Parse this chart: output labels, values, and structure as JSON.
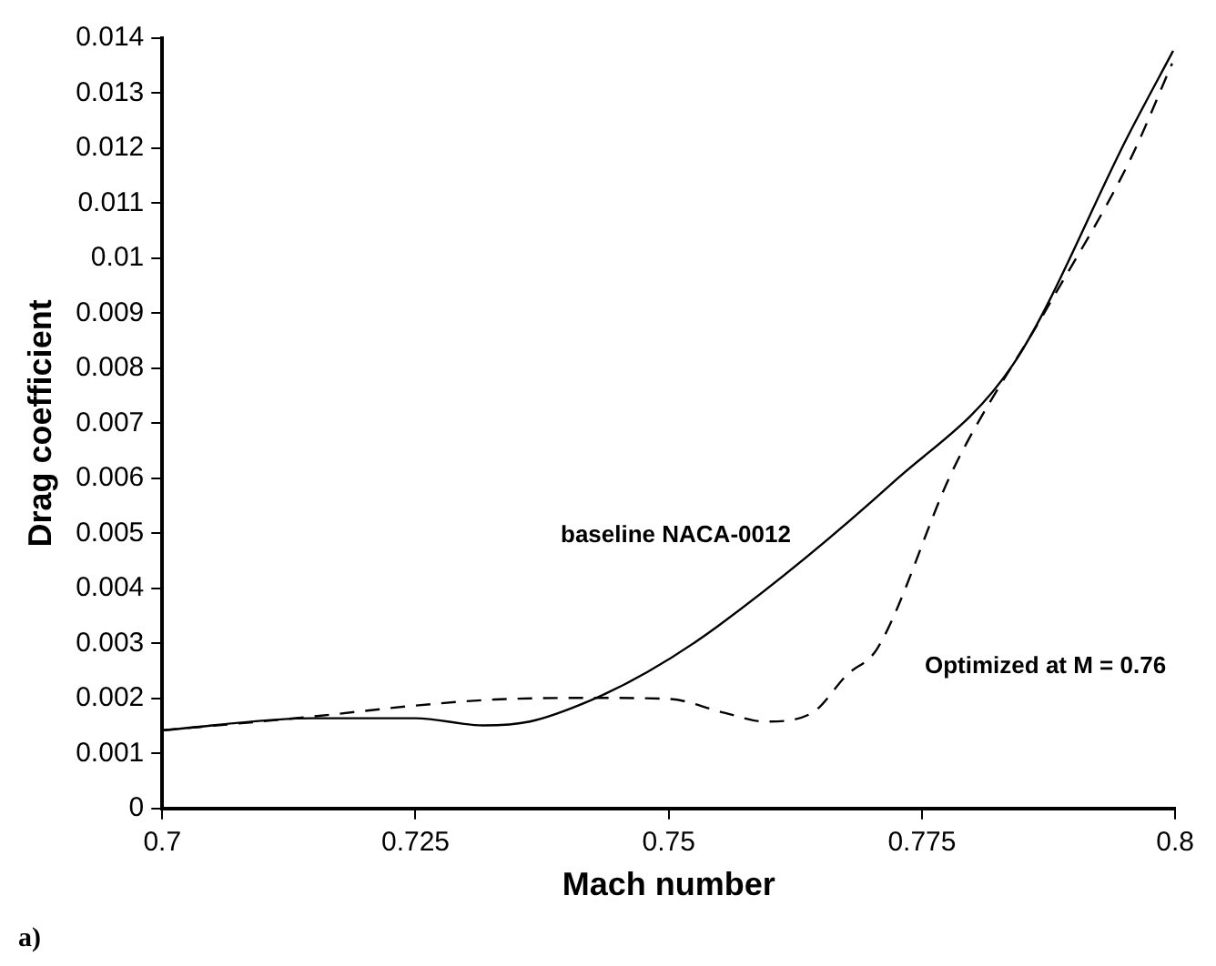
{
  "chart_data": {
    "type": "line",
    "xlabel": "Mach number",
    "ylabel": "Drag coefficient",
    "xlim": [
      0.7,
      0.8
    ],
    "xticks": [
      0.7,
      0.725,
      0.75,
      0.775,
      0.8
    ],
    "ylim": [
      0,
      0.014
    ],
    "yticks": [
      0,
      0.001,
      0.002,
      0.003,
      0.004,
      0.005,
      0.006,
      0.007,
      0.008,
      0.009,
      0.01,
      0.011,
      0.012,
      0.013,
      0.014
    ],
    "grid": false,
    "legend": false,
    "marker": "none",
    "series": [
      {
        "color": "#000000",
        "line_style": "solid",
        "x": [
          0.7,
          0.7148,
          0.725,
          0.7317,
          0.7363,
          0.7421,
          0.7479,
          0.7549,
          0.7723,
          0.784,
          0.7955,
          0.7998
        ],
        "values": [
          0.00142,
          0.00164,
          0.00164,
          0.00151,
          0.00158,
          0.00195,
          0.00248,
          0.00332,
          0.00595,
          0.00807,
          0.01228,
          0.01377
        ]
      },
      {
        "color": "#000000",
        "line_style": "dashed",
        "x": [
          0.7,
          0.7148,
          0.725,
          0.7328,
          0.7421,
          0.75,
          0.7555,
          0.7595,
          0.7641,
          0.7676,
          0.7706,
          0.7781,
          0.7874,
          0.7955,
          0.7997
        ],
        "values": [
          0.00142,
          0.00167,
          0.00187,
          0.00198,
          0.00201,
          0.00199,
          0.00174,
          0.00158,
          0.00173,
          0.00243,
          0.00291,
          0.00617,
          0.00911,
          0.01177,
          0.01354
        ]
      }
    ],
    "annotations": [
      "baseline NACA-0012",
      "Optimized at M = 0.76",
      "a)"
    ]
  }
}
